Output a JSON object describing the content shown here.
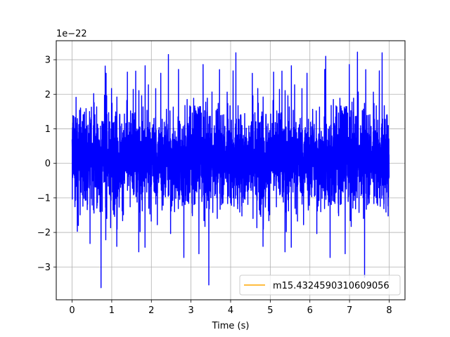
{
  "chart_data": {
    "type": "line",
    "xlabel": "Time (s)",
    "ylabel": "",
    "y_offset_label": "1e−22",
    "xlim": [
      -0.4,
      8.4
    ],
    "ylim": [
      -3.95,
      3.55
    ],
    "x_ticks": [
      0,
      1,
      2,
      3,
      4,
      5,
      6,
      7,
      8
    ],
    "x_tick_labels": [
      "0",
      "1",
      "2",
      "3",
      "4",
      "5",
      "6",
      "7",
      "8"
    ],
    "y_ticks": [
      -3,
      -2,
      -1,
      0,
      1,
      2,
      3
    ],
    "y_tick_labels": [
      "−3",
      "−2",
      "−1",
      "0",
      "1",
      "2",
      "3"
    ],
    "grid": true,
    "legend_placement": "lower-right",
    "series": [
      {
        "name": "",
        "color": "#0000ff",
        "description": "dense noise time series, 0 to 8 s",
        "x_range": [
          0,
          8
        ],
        "y_range": [
          -3.6,
          3.2
        ],
        "typical_band": [
          -1.8,
          2.0
        ],
        "notable_points": [
          {
            "x": 0.73,
            "y": -3.6
          },
          {
            "x": 2.43,
            "y": 3.15
          },
          {
            "x": 3.45,
            "y": -3.52
          },
          {
            "x": 6.4,
            "y": 3.1
          },
          {
            "x": 7.2,
            "y": 3.22
          },
          {
            "x": 7.38,
            "y": -3.3
          }
        ]
      },
      {
        "name": "m15.4324590310609056",
        "color": "#ffa500",
        "description": "legend entry only"
      }
    ]
  }
}
